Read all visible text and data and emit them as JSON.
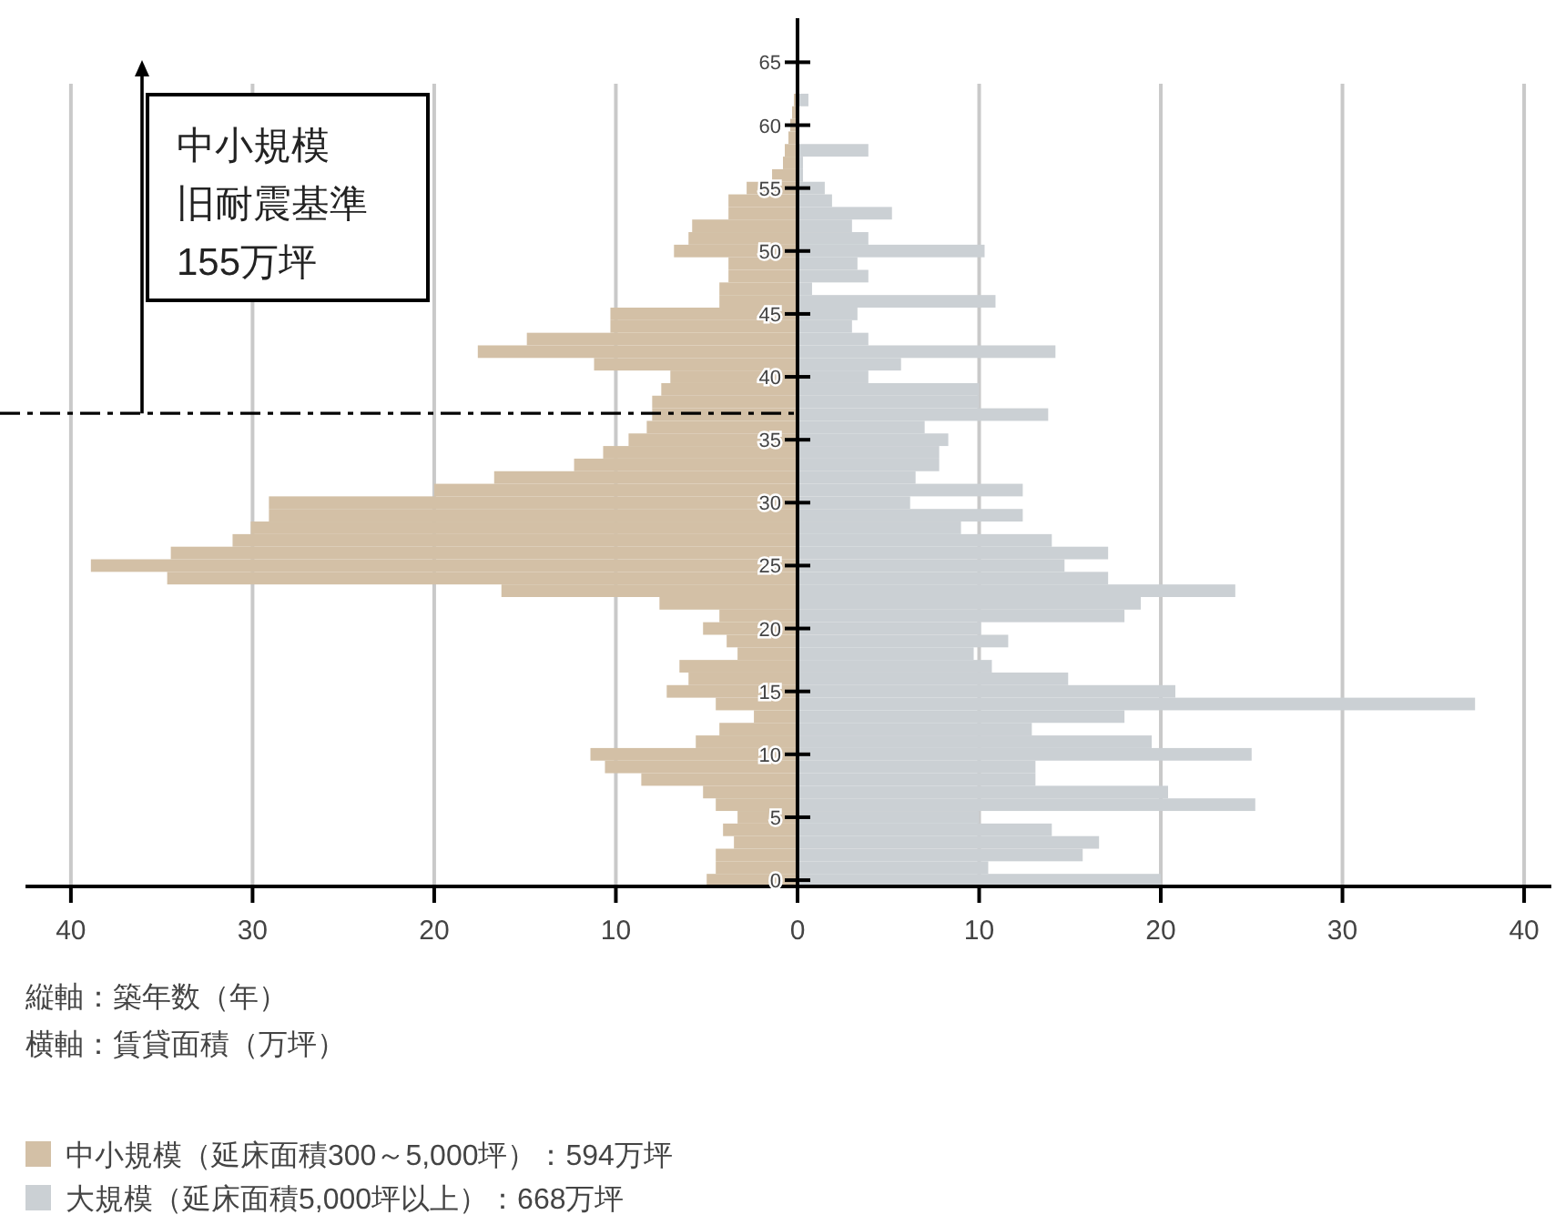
{
  "chart_data": {
    "type": "bar",
    "orientation": "horizontal",
    "x": [
      0,
      1,
      2,
      3,
      4,
      5,
      6,
      7,
      8,
      9,
      10,
      11,
      12,
      13,
      14,
      15,
      16,
      17,
      18,
      19,
      20,
      21,
      22,
      23,
      24,
      25,
      26,
      27,
      28,
      29,
      30,
      31,
      32,
      33,
      34,
      35,
      36,
      37,
      38,
      39,
      40,
      41,
      42,
      43,
      44,
      45,
      46,
      47,
      48,
      49,
      50,
      51,
      52,
      53,
      54,
      55,
      56,
      57,
      58,
      59,
      60,
      61,
      62
    ],
    "series": [
      {
        "name": "中小規模（延床面積300～5,000坪）：594万坪",
        "color": "#d3c0a6",
        "values": [
          -5.0,
          -4.5,
          -4.5,
          -3.5,
          -4.1,
          -3.3,
          -4.5,
          -5.2,
          -8.6,
          -10.6,
          -11.4,
          -5.6,
          -4.3,
          -2.4,
          -4.5,
          -7.2,
          -6.0,
          -6.5,
          -3.3,
          -3.9,
          -5.2,
          -4.3,
          -7.6,
          -16.3,
          -34.7,
          -38.9,
          -34.5,
          -31.1,
          -30.1,
          -29.1,
          -29.1,
          -20.0,
          -16.7,
          -12.3,
          -10.7,
          -9.3,
          -8.3,
          -8.0,
          -8.0,
          -7.5,
          -7.0,
          -11.2,
          -17.6,
          -14.9,
          -10.3,
          -10.3,
          -4.3,
          -4.3,
          -3.8,
          -3.8,
          -6.8,
          -6.0,
          -5.8,
          -3.8,
          -3.8,
          -2.8,
          -1.4,
          -0.8,
          -0.7,
          -0.5,
          -0.4,
          -0.3,
          -0.2
        ]
      },
      {
        "name": "大規模（延床面積5,000坪以上）：668万坪",
        "color": "#cbd0d4",
        "values": [
          20.0,
          10.5,
          15.7,
          16.6,
          14.0,
          10.0,
          25.2,
          20.4,
          13.1,
          13.1,
          25.0,
          19.5,
          12.9,
          18.0,
          37.3,
          20.8,
          14.9,
          10.7,
          9.7,
          11.6,
          10.1,
          18.0,
          18.9,
          24.1,
          17.1,
          14.7,
          17.1,
          14.0,
          9.0,
          12.4,
          6.2,
          12.4,
          6.5,
          7.8,
          7.8,
          8.3,
          7.0,
          13.8,
          10.0,
          10.0,
          3.9,
          5.7,
          14.2,
          3.9,
          3.0,
          3.3,
          10.9,
          0.8,
          3.9,
          3.3,
          10.3,
          3.9,
          3.0,
          5.2,
          1.9,
          1.5,
          0.3,
          0.3,
          3.9,
          null,
          null,
          null,
          0.6
        ]
      }
    ],
    "xlim": [
      -42.5,
      41.5
    ],
    "xticks": [
      {
        "value": -40,
        "label": "40"
      },
      {
        "value": -30,
        "label": "30"
      },
      {
        "value": -20,
        "label": "20"
      },
      {
        "value": -10,
        "label": "10"
      },
      0,
      10,
      20,
      30,
      40
    ],
    "ylim": [
      -0.5,
      68.5
    ],
    "yticks": [
      0,
      5,
      10,
      15,
      20,
      25,
      30,
      35,
      40,
      45,
      50,
      55,
      60,
      65
    ],
    "grid": "x",
    "legend": "bottom",
    "ref_lines": [
      {
        "axis": "y",
        "value": 37.1,
        "line_style": "dashdot",
        "color": "#000000"
      }
    ],
    "stacked": true,
    "annotations": [
      "中小規模",
      "旧耐震基準",
      "155万坪",
      "縦軸：築年数（年）",
      "横軸：賃貸面積（万坪）"
    ]
  }
}
